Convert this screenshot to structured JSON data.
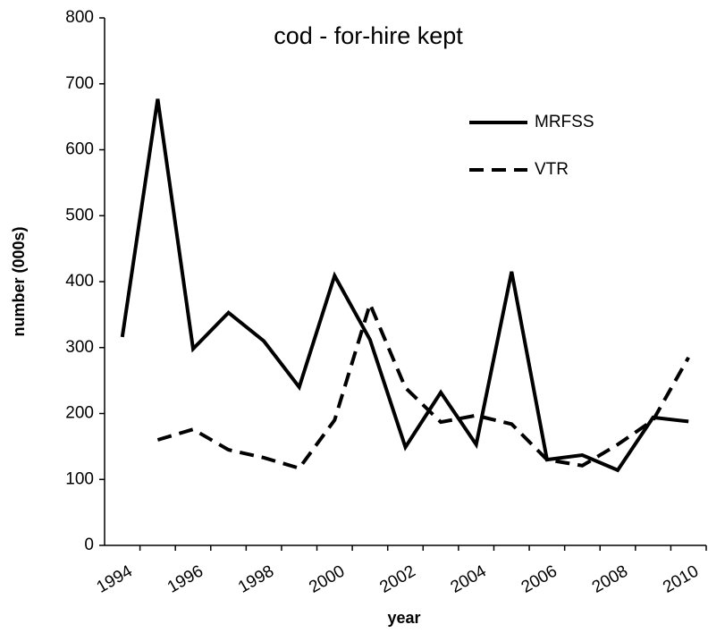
{
  "chart_data": {
    "type": "line",
    "title": "cod - for-hire kept",
    "x_label": "year",
    "y_label": "number (000s)",
    "categories": [
      "1994",
      null,
      "1996",
      null,
      "1998",
      null,
      "2000",
      null,
      "2002",
      null,
      "2004",
      null,
      "2006",
      null,
      "2008",
      null,
      "2010"
    ],
    "series": [
      {
        "name": "MRFSS",
        "color": "#000000",
        "dash": "solid",
        "values": [
          316,
          677,
          298,
          353,
          310,
          240,
          409,
          312,
          149,
          232,
          153,
          415,
          130,
          137,
          114,
          194,
          188
        ]
      },
      {
        "name": "VTR",
        "color": "#000000",
        "dash": "dashed",
        "values": [
          null,
          160,
          176,
          145,
          133,
          117,
          190,
          366,
          239,
          187,
          197,
          184,
          130,
          121,
          153,
          190,
          285
        ]
      }
    ],
    "ylim": [
      0,
      800
    ],
    "yticks": [
      0,
      100,
      200,
      300,
      400,
      500,
      600,
      700,
      800
    ],
    "grid": false,
    "legend": "top-right"
  }
}
